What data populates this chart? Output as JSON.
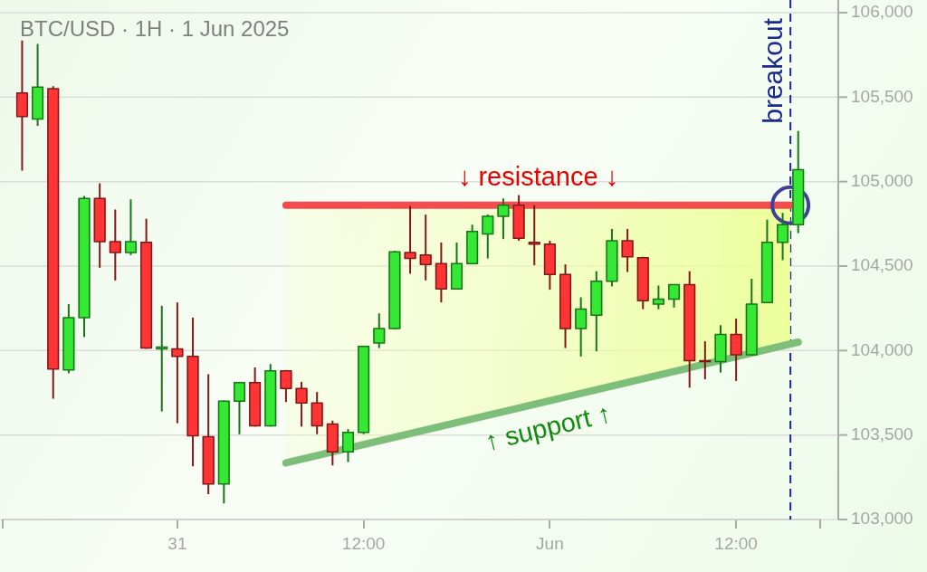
{
  "chart_data": {
    "type": "candlestick",
    "title": "BTC/USD · 1H · 1 Jun 2025",
    "x": [
      "2025-05-30T14:00",
      "2025-05-30T15:00",
      "2025-05-30T16:00",
      "2025-05-30T17:00",
      "2025-05-30T18:00",
      "2025-05-30T19:00",
      "2025-05-30T20:00",
      "2025-05-30T21:00",
      "2025-05-30T22:00",
      "2025-05-30T23:00",
      "2025-05-31T00:00",
      "2025-05-31T01:00",
      "2025-05-31T02:00",
      "2025-05-31T03:00",
      "2025-05-31T04:00",
      "2025-05-31T05:00",
      "2025-05-31T06:00",
      "2025-05-31T07:00",
      "2025-05-31T08:00",
      "2025-05-31T09:00",
      "2025-05-31T10:00",
      "2025-05-31T11:00",
      "2025-05-31T12:00",
      "2025-05-31T13:00",
      "2025-05-31T14:00",
      "2025-05-31T15:00",
      "2025-05-31T16:00",
      "2025-05-31T17:00",
      "2025-05-31T18:00",
      "2025-05-31T19:00",
      "2025-05-31T20:00",
      "2025-05-31T21:00",
      "2025-05-31T22:00",
      "2025-05-31T23:00",
      "2025-06-01T00:00",
      "2025-06-01T01:00",
      "2025-06-01T02:00",
      "2025-06-01T03:00",
      "2025-06-01T04:00",
      "2025-06-01T05:00",
      "2025-06-01T06:00",
      "2025-06-01T07:00",
      "2025-06-01T08:00",
      "2025-06-01T09:00",
      "2025-06-01T10:00",
      "2025-06-01T11:00",
      "2025-06-01T12:00",
      "2025-06-01T13:00",
      "2025-06-01T14:00",
      "2025-06-01T15:00",
      "2025-06-01T16:00"
    ],
    "ohlc": [
      [
        105525,
        105835,
        105065,
        105385
      ],
      [
        105370,
        105815,
        105330,
        105560
      ],
      [
        105550,
        105565,
        103715,
        103890
      ],
      [
        103885,
        104275,
        103865,
        104195
      ],
      [
        104195,
        104915,
        104080,
        104900
      ],
      [
        104900,
        104990,
        104490,
        104645
      ],
      [
        104645,
        104835,
        104415,
        104580
      ],
      [
        104580,
        104895,
        104565,
        104645
      ],
      [
        104640,
        104780,
        104010,
        104015
      ],
      [
        104010,
        104265,
        103640,
        104020
      ],
      [
        104010,
        104285,
        103570,
        103965
      ],
      [
        103965,
        104195,
        103315,
        103495
      ],
      [
        103490,
        103860,
        103150,
        103210
      ],
      [
        103210,
        103705,
        103095,
        103700
      ],
      [
        103700,
        103815,
        103505,
        103810
      ],
      [
        103810,
        103900,
        103550,
        103555
      ],
      [
        103555,
        103920,
        103550,
        103880
      ],
      [
        103880,
        103885,
        103695,
        103775
      ],
      [
        103775,
        103815,
        103550,
        103690
      ],
      [
        103690,
        103755,
        103505,
        103555
      ],
      [
        103565,
        103585,
        103320,
        103400
      ],
      [
        103400,
        103535,
        103340,
        103515
      ],
      [
        103515,
        104025,
        103505,
        104025
      ],
      [
        104045,
        104220,
        104015,
        104130
      ],
      [
        104130,
        104590,
        104125,
        104585
      ],
      [
        104580,
        104855,
        104455,
        104545
      ],
      [
        104565,
        104805,
        104415,
        104510
      ],
      [
        104515,
        104640,
        104285,
        104365
      ],
      [
        104365,
        104640,
        104365,
        104515
      ],
      [
        104515,
        104745,
        104510,
        104705
      ],
      [
        104690,
        104805,
        104545,
        104795
      ],
      [
        104795,
        104900,
        104660,
        104860
      ],
      [
        104860,
        104920,
        104650,
        104665
      ],
      [
        104640,
        104860,
        104505,
        104630
      ],
      [
        104630,
        104650,
        104360,
        104450
      ],
      [
        104450,
        104510,
        104015,
        104130
      ],
      [
        104130,
        104315,
        103965,
        104245
      ],
      [
        104210,
        104470,
        103995,
        104410
      ],
      [
        104410,
        104720,
        104380,
        104650
      ],
      [
        104650,
        104720,
        104465,
        104555
      ],
      [
        104550,
        104555,
        104245,
        104295
      ],
      [
        104275,
        104385,
        104245,
        104305
      ],
      [
        104305,
        104390,
        104255,
        104390
      ],
      [
        104390,
        104470,
        103780,
        103940
      ],
      [
        103940,
        104055,
        103830,
        103935
      ],
      [
        103935,
        104150,
        103870,
        104095
      ],
      [
        104095,
        104190,
        103820,
        103975
      ],
      [
        103975,
        104425,
        103970,
        104275
      ],
      [
        104285,
        104775,
        104280,
        104640
      ],
      [
        104640,
        104815,
        104535,
        104745
      ],
      [
        104745,
        105300,
        104695,
        105070
      ]
    ],
    "colors": [
      "#ff3434",
      "#34e834",
      "#ff3434",
      "#34e834",
      "#34e834",
      "#ff3434",
      "#ff3434",
      "#34e834",
      "#ff3434",
      "#34e834",
      "#ff3434",
      "#ff3434",
      "#ff3434",
      "#34e834",
      "#34e834",
      "#ff3434",
      "#34e834",
      "#ff3434",
      "#ff3434",
      "#ff3434",
      "#ff3434",
      "#34e834",
      "#34e834",
      "#34e834",
      "#34e834",
      "#ff3434",
      "#ff3434",
      "#ff3434",
      "#34e834",
      "#34e834",
      "#34e834",
      "#34e834",
      "#ff3434",
      "#ff3434",
      "#ff3434",
      "#ff3434",
      "#34e834",
      "#34e834",
      "#34e834",
      "#ff3434",
      "#ff3434",
      "#34e834",
      "#34e834",
      "#ff3434",
      "#ff3434",
      "#34e834",
      "#ff3434",
      "#34e834",
      "#34e834",
      "#34e834",
      "#34e834"
    ],
    "series": [
      {
        "type": "line",
        "name": "↓ resistance ↓",
        "color": "#f44c4c",
        "x": [
          "2025-05-31T07:00",
          "2025-06-01T15:30"
        ],
        "values": [
          104860,
          104860
        ],
        "lower": [
          103335,
          104040
        ],
        "upper": [
          104860,
          104860
        ]
      },
      {
        "type": "line",
        "name": "↑ support ↑",
        "color": "#7dbe7a",
        "x": [
          "2025-05-31T07:00",
          "2025-06-01T16:00"
        ],
        "values": [
          103335,
          104050
        ]
      },
      {
        "type": "scatter",
        "color": "#3d3f9a",
        "marker": "circle",
        "x": [
          "2025-06-01T15:30"
        ],
        "values": [
          104860
        ]
      }
    ],
    "ref_lines": [
      {
        "axis": "x",
        "value": "2025-06-01T15:30",
        "label": "breakout",
        "color": "#1a2a8c",
        "line_style": "dashed"
      }
    ],
    "xlim": [
      "2025-05-30T12:45",
      "2025-06-01T17:25"
    ],
    "xticks": [
      {
        "value": "2025-05-31T00:00",
        "label": "31"
      },
      {
        "value": "2025-05-31T12:00",
        "label": "12:00"
      },
      {
        "value": "2025-06-01T00:00",
        "label": "Jun"
      },
      {
        "value": "2025-06-01T12:00",
        "label": "12:00"
      }
    ],
    "ylim": [
      103000,
      106000
    ],
    "yticks": [
      {
        "value": 103000,
        "label": "103,000"
      },
      {
        "value": 103500,
        "label": "103,500"
      },
      {
        "value": 104000,
        "label": "104,000"
      },
      {
        "value": 104500,
        "label": "104,500"
      },
      {
        "value": 105000,
        "label": "105,000"
      },
      {
        "value": 105500,
        "label": "105,500"
      },
      {
        "value": 106000,
        "label": "106,000"
      }
    ],
    "grid": "y"
  }
}
